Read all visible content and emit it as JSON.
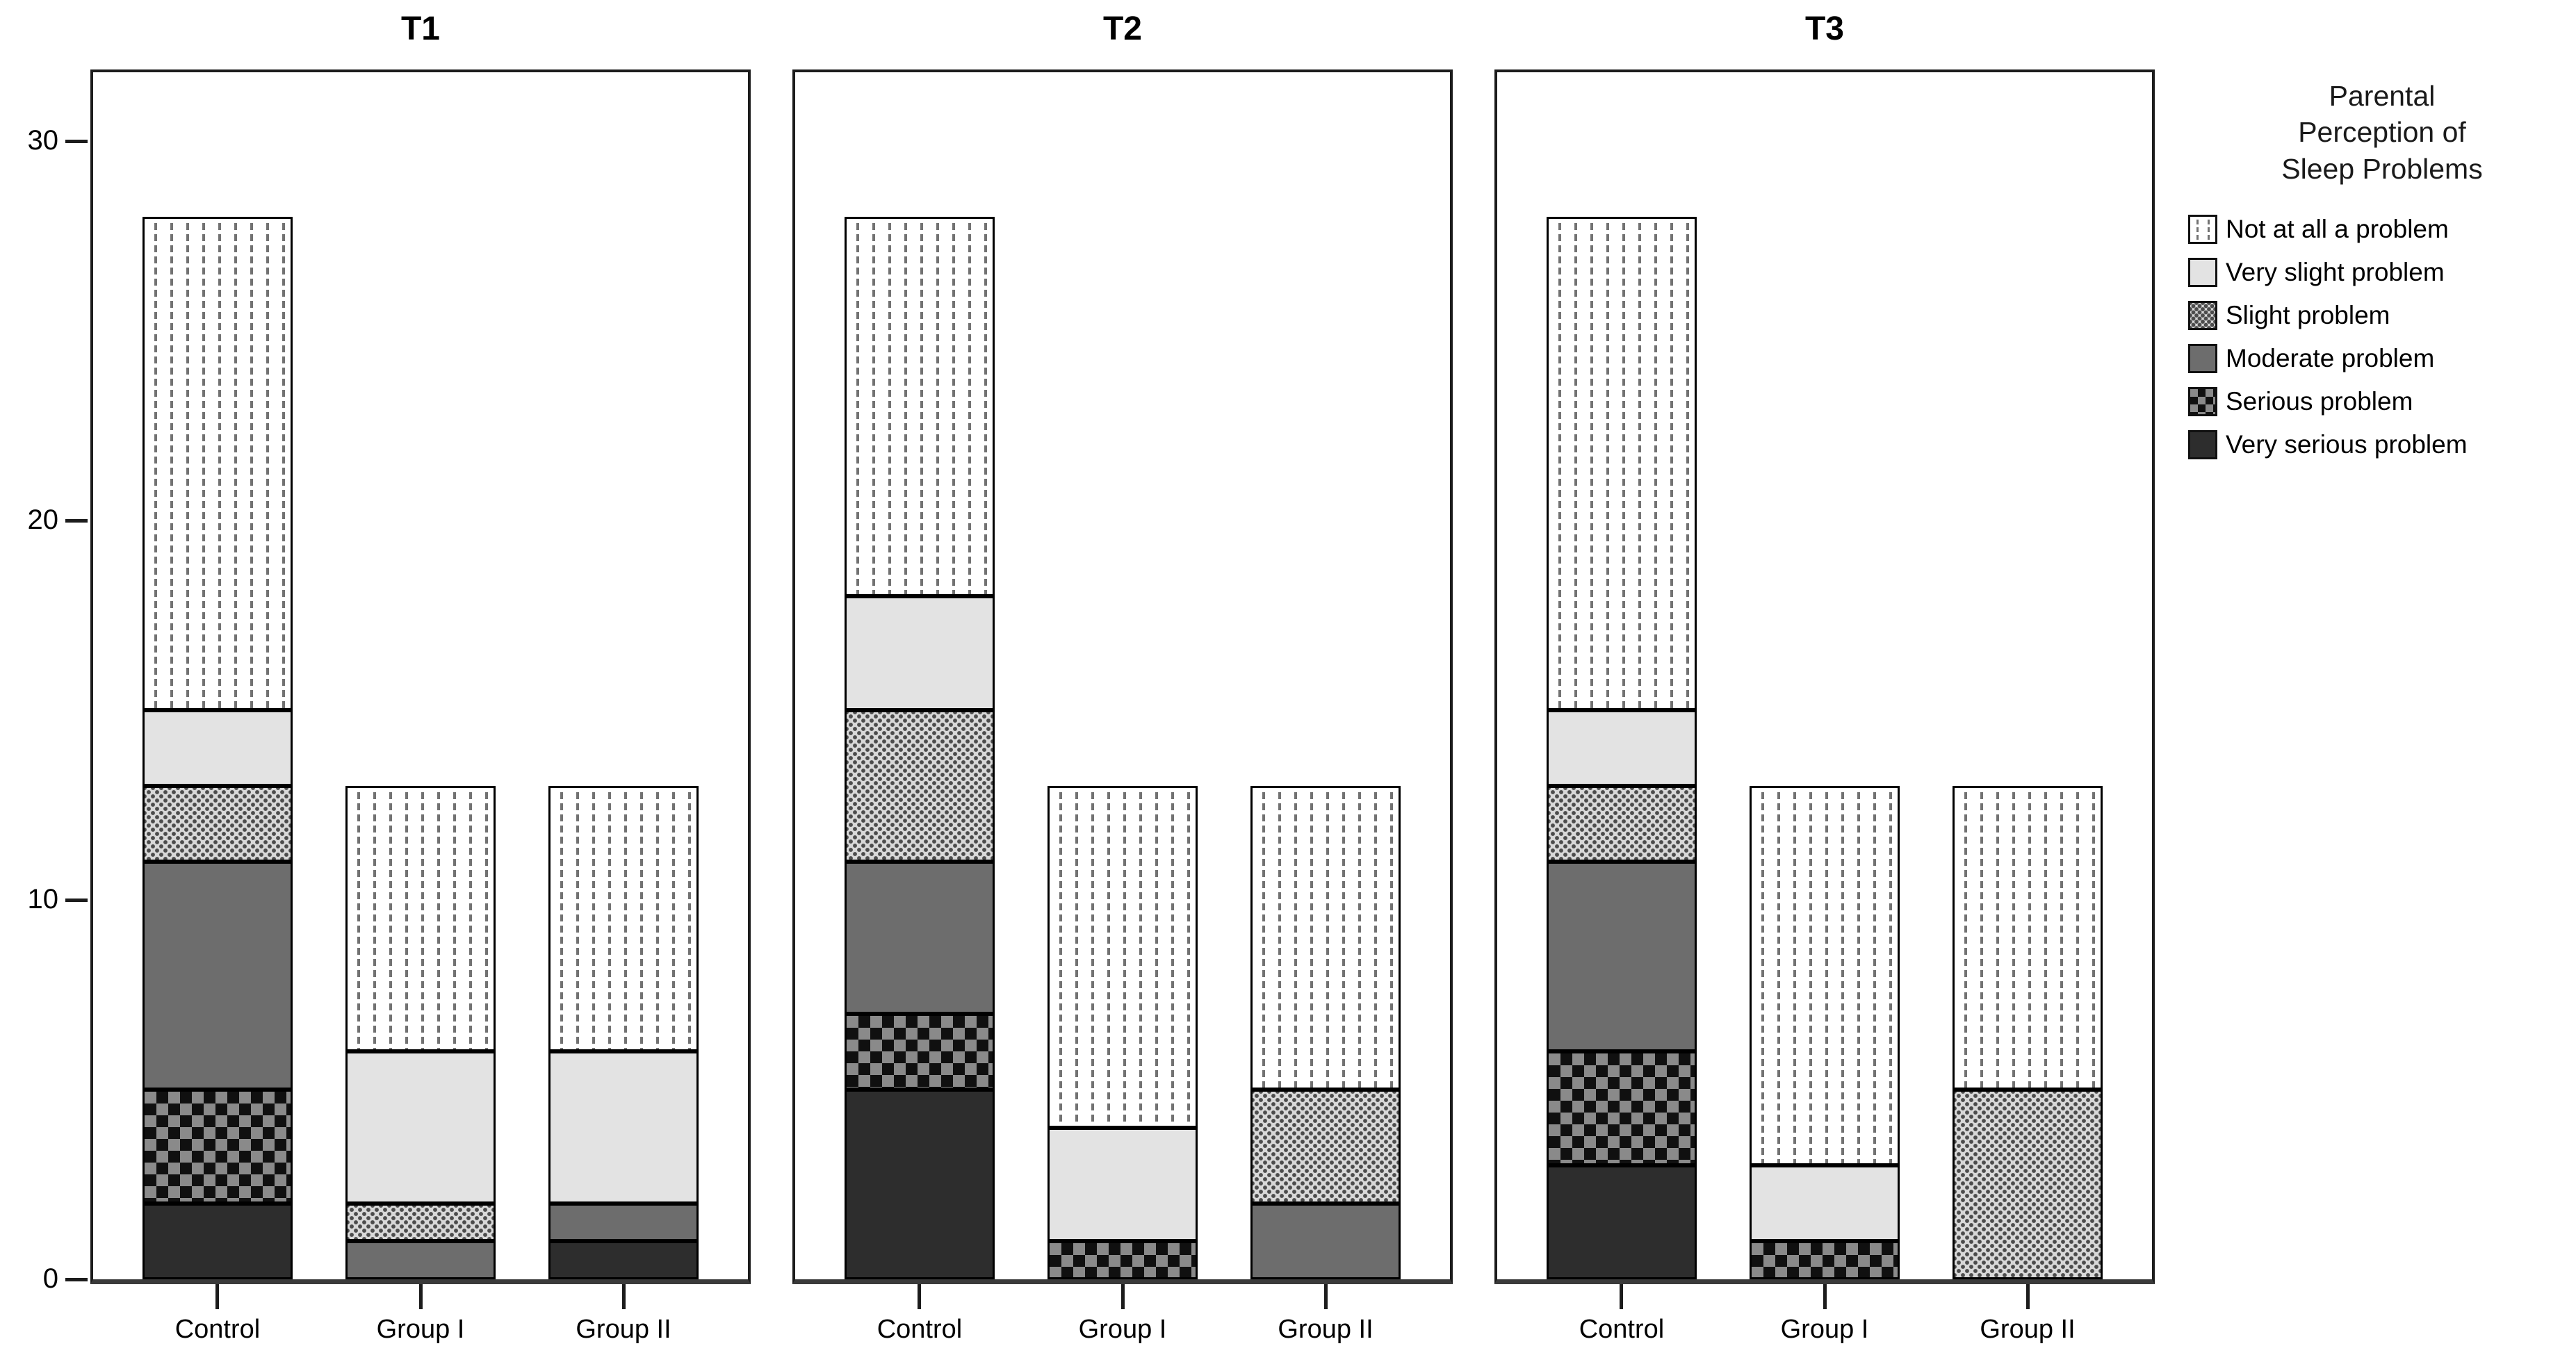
{
  "chart_data": {
    "type": "bar",
    "stacked": true,
    "categories": [
      "Control",
      "Group I",
      "Group II"
    ],
    "yticks": [
      0,
      10,
      20,
      30
    ],
    "ylim": [
      0,
      31.9
    ],
    "grid": false,
    "legend_position": "right",
    "segments_order_bottom_to_top": [
      "Very serious problem",
      "Serious problem",
      "Moderate problem",
      "Slight problem",
      "Very slight problem",
      "Not at all a problem"
    ],
    "panels": [
      {
        "title": "T1",
        "series": {
          "Very serious problem": [
            2,
            0,
            1
          ],
          "Serious problem": [
            3,
            0,
            0
          ],
          "Moderate problem": [
            6,
            1,
            1
          ],
          "Slight problem": [
            2,
            1,
            0
          ],
          "Very slight problem": [
            2,
            4,
            4
          ],
          "Not at all a problem": [
            13,
            7,
            7
          ]
        }
      },
      {
        "title": "T2",
        "series": {
          "Very serious problem": [
            5,
            0,
            0
          ],
          "Serious problem": [
            2,
            1,
            0
          ],
          "Moderate problem": [
            4,
            0,
            2
          ],
          "Slight problem": [
            4,
            0,
            3
          ],
          "Very slight problem": [
            3,
            3,
            0
          ],
          "Not at all a problem": [
            10,
            9,
            8
          ]
        }
      },
      {
        "title": "T3",
        "series": {
          "Very serious problem": [
            3,
            0,
            0
          ],
          "Serious problem": [
            3,
            1,
            0
          ],
          "Moderate problem": [
            5,
            0,
            0
          ],
          "Slight problem": [
            2,
            0,
            5
          ],
          "Very slight problem": [
            2,
            2,
            0
          ],
          "Not at all a problem": [
            13,
            10,
            8
          ]
        }
      }
    ],
    "legend": {
      "title": "Parental\nPerception of\nSleep Problems",
      "entries": [
        {
          "label": "Not at all a problem",
          "pattern": "vertical-dashed",
          "color": "#ffffff"
        },
        {
          "label": "Very slight problem",
          "pattern": "solid-light-gray",
          "color": "#e3e3e3"
        },
        {
          "label": "Slight problem",
          "pattern": "stipple-dots",
          "color": "#d8d8d8"
        },
        {
          "label": "Moderate problem",
          "pattern": "solid-medium-gray",
          "color": "#6d6d6d"
        },
        {
          "label": "Serious problem",
          "pattern": "checkerboard",
          "color": "#101010"
        },
        {
          "label": "Very serious problem",
          "pattern": "solid-dark-gray",
          "color": "#2d2d2d"
        }
      ]
    }
  }
}
